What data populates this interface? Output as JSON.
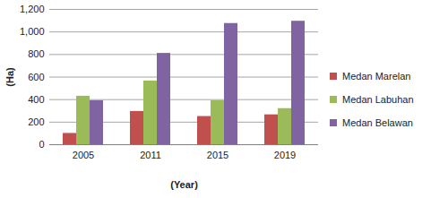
{
  "chart_data": {
    "type": "bar",
    "x_label": "(Year)",
    "y_label": "(Ha)",
    "categories": [
      "2005",
      "2011",
      "2015",
      "2019"
    ],
    "series": [
      {
        "name": "Medan Marelan",
        "color": "#c0504d",
        "values": [
          100,
          295,
          250,
          265
        ]
      },
      {
        "name": "Medan Labuhan",
        "color": "#9bbb59",
        "values": [
          430,
          565,
          390,
          320
        ]
      },
      {
        "name": "Medan Belawan",
        "color": "#8064a2",
        "values": [
          390,
          810,
          1075,
          1095
        ]
      }
    ],
    "ylim": [
      0,
      1200
    ],
    "yticks": [
      0,
      200,
      400,
      600,
      800,
      1000,
      1200
    ],
    "grid": true,
    "legend": "right"
  }
}
